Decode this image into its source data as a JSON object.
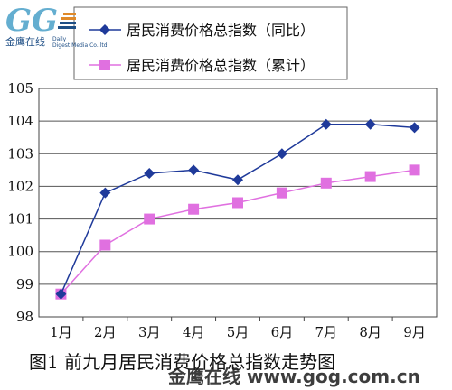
{
  "chart_data": {
    "type": "line",
    "categories": [
      "1月",
      "2月",
      "3月",
      "4月",
      "5月",
      "6月",
      "7月",
      "8月",
      "9月"
    ],
    "series": [
      {
        "name": "居民消费价格总指数（同比）",
        "values": [
          98.7,
          101.8,
          102.4,
          102.5,
          102.2,
          103.0,
          103.9,
          103.9,
          103.8
        ],
        "color": "#1f3a9a",
        "marker": "diamond"
      },
      {
        "name": "居民消费价格总指数（累计）",
        "values": [
          98.7,
          100.2,
          101.0,
          101.3,
          101.5,
          101.8,
          102.1,
          102.3,
          102.5
        ],
        "color": "#e070e0",
        "marker": "square"
      }
    ],
    "ylim": [
      98,
      105
    ],
    "yticks": [
      98,
      99,
      100,
      101,
      102,
      103,
      104,
      105
    ],
    "grid": "horizontal",
    "legend": "top",
    "caption": "图1 前九月居民消费价格总指数走势图"
  },
  "watermark": {
    "logo_mark": "GG",
    "logo_text": "金鹰在线",
    "logo_sub1": "Daily",
    "logo_sub2": "Digest Media Co.,ltd.",
    "bottom_text": "金鹰在线 www.gog.com.cn"
  }
}
